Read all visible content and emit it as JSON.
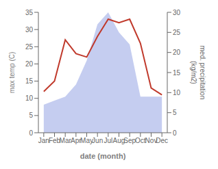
{
  "chart_data": {
    "type": "line",
    "xlabel": "date (month)",
    "ylabel": "max temp (C)",
    "y2label": "med. precipitation\n(kg/m2)",
    "categories": [
      "Jan",
      "Feb",
      "Mar",
      "Apr",
      "May",
      "Jun",
      "Jul",
      "Aug",
      "Sep",
      "Oct",
      "Nov",
      "Dec"
    ],
    "series": [
      {
        "type": "area",
        "axis": "y2",
        "color": "#c5cdf0",
        "values": [
          7,
          8,
          9,
          12,
          18,
          27,
          30,
          25,
          22,
          9,
          9,
          9
        ]
      },
      {
        "type": "line",
        "color": "#c0392b",
        "values": [
          12,
          15,
          27,
          23,
          22,
          28,
          33,
          32,
          33,
          26,
          13,
          11
        ]
      }
    ],
    "ylim": [
      0,
      35
    ],
    "yticks": [
      0,
      5,
      10,
      15,
      20,
      25,
      30,
      35
    ],
    "y2lim": [
      0,
      30
    ],
    "y2ticks": [
      0,
      5,
      10,
      15,
      20,
      25,
      30
    ],
    "grid": false
  }
}
